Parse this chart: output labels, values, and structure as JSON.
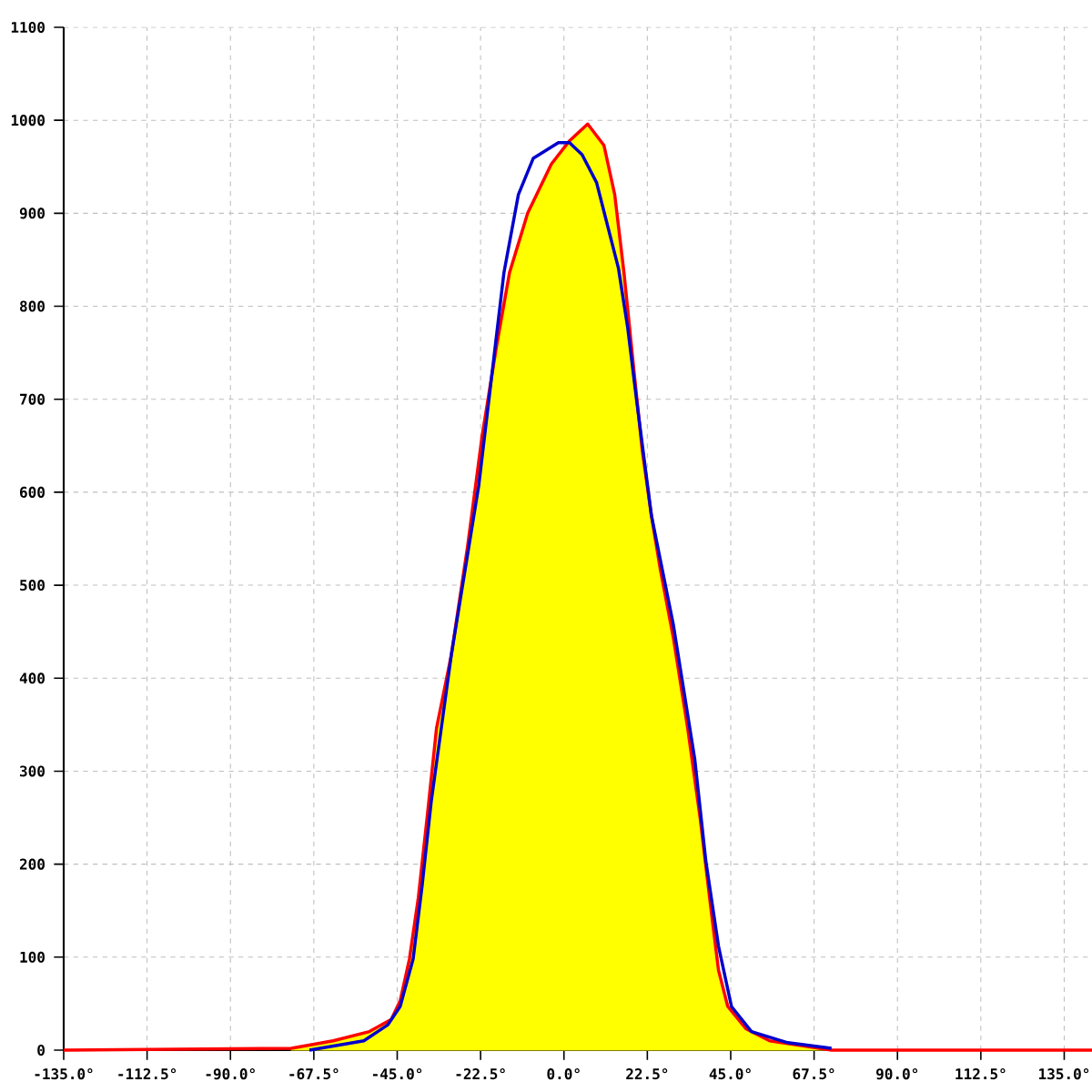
{
  "chart_data": {
    "type": "line",
    "xlim": [
      -135,
      142.5
    ],
    "ylim": [
      0,
      1100
    ],
    "xticks": [
      {
        "value": -135,
        "label": "-135.0°"
      },
      {
        "value": -112.5,
        "label": "-112.5°"
      },
      {
        "value": -90,
        "label": "-90.0°"
      },
      {
        "value": -67.5,
        "label": "-67.5°"
      },
      {
        "value": -45,
        "label": "-45.0°"
      },
      {
        "value": -22.5,
        "label": "-22.5°"
      },
      {
        "value": 0,
        "label": "0.0°"
      },
      {
        "value": 22.5,
        "label": "22.5°"
      },
      {
        "value": 45,
        "label": "45.0°"
      },
      {
        "value": 67.5,
        "label": "67.5°"
      },
      {
        "value": 90,
        "label": "90.0°"
      },
      {
        "value": 112.5,
        "label": "112.5°"
      },
      {
        "value": 135,
        "label": "135.0°"
      }
    ],
    "yticks": [
      0,
      100,
      200,
      300,
      400,
      500,
      600,
      700,
      800,
      900,
      1000,
      1100
    ],
    "grid": true,
    "series": [
      {
        "type": "area",
        "color": "#ffff00",
        "x": [
          -73.6,
          -62.3,
          -52.5,
          -46.6,
          -44.2,
          -41.7,
          -39.3,
          -36.8,
          -34.4,
          -30.4,
          -26,
          -22.1,
          -18.2,
          -14.7,
          -9.8,
          -3.4,
          1.5,
          6.4,
          10.8,
          13.7,
          16.2,
          18.7,
          21.1,
          23.6,
          26,
          29.5,
          33.4,
          36.8,
          39.3,
          41.7,
          44.2,
          49.1,
          55.5,
          65.3,
          72.2
        ],
        "values": [
          2,
          10,
          20,
          33,
          53,
          98,
          164,
          255,
          346,
          425,
          542,
          660,
          757,
          836,
          900,
          953,
          978,
          996,
          973,
          920,
          836,
          738,
          646,
          575,
          517,
          444,
          346,
          248,
          164,
          86,
          47,
          23,
          10,
          4,
          0
        ]
      },
      {
        "color": "#ff0000",
        "x": [
          -135,
          -73.6,
          -62.3,
          -52.5,
          -46.6,
          -44.2,
          -41.7,
          -39.3,
          -36.8,
          -34.4,
          -30.4,
          -26,
          -22.1,
          -18.2,
          -14.7,
          -9.8,
          -3.4,
          1.5,
          6.4,
          10.8,
          13.7,
          16.2,
          18.7,
          21.1,
          23.6,
          26,
          29.5,
          33.4,
          36.8,
          39.3,
          41.7,
          44.2,
          49.1,
          55.5,
          65.3,
          72.2,
          142.5
        ],
        "values": [
          0,
          2,
          10,
          20,
          33,
          53,
          98,
          164,
          255,
          346,
          425,
          542,
          660,
          757,
          836,
          900,
          953,
          978,
          996,
          973,
          920,
          836,
          738,
          646,
          575,
          517,
          444,
          346,
          248,
          164,
          86,
          47,
          23,
          10,
          4,
          0,
          0
        ]
      },
      {
        "color": "#0000cc",
        "x": [
          -68.7,
          -54,
          -47.6,
          -44.2,
          -40.7,
          -38.3,
          -35.8,
          -30.4,
          -23,
          -16.2,
          -12.3,
          -8.3,
          -1.5,
          1.5,
          4.9,
          8.8,
          11.3,
          14.7,
          17.2,
          19.6,
          23.6,
          29.5,
          35.3,
          38.3,
          41.7,
          45.2,
          50.6,
          60.4,
          72.2
        ],
        "values": [
          0,
          10,
          27,
          47,
          98,
          176,
          268,
          425,
          607,
          836,
          920,
          959,
          976,
          976,
          963,
          933,
          894,
          841,
          777,
          699,
          575,
          458,
          313,
          203,
          112,
          47,
          20,
          8,
          2
        ]
      }
    ]
  }
}
